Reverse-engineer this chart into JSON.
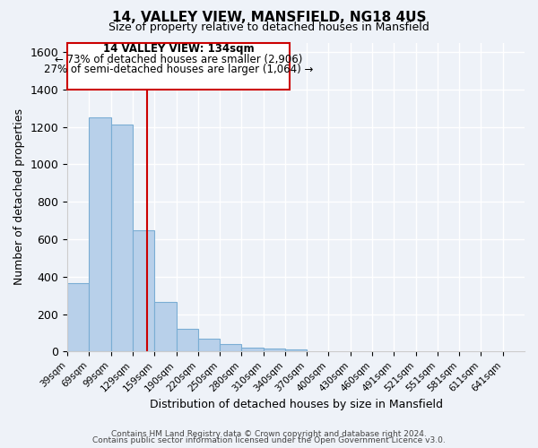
{
  "title": "14, VALLEY VIEW, MANSFIELD, NG18 4US",
  "subtitle": "Size of property relative to detached houses in Mansfield",
  "xlabel": "Distribution of detached houses by size in Mansfield",
  "ylabel": "Number of detached properties",
  "bar_labels": [
    "39sqm",
    "69sqm",
    "99sqm",
    "129sqm",
    "159sqm",
    "190sqm",
    "220sqm",
    "250sqm",
    "280sqm",
    "310sqm",
    "340sqm",
    "370sqm",
    "400sqm",
    "430sqm",
    "460sqm",
    "491sqm",
    "521sqm",
    "551sqm",
    "581sqm",
    "611sqm",
    "641sqm"
  ],
  "bar_values": [
    365,
    1250,
    1210,
    650,
    265,
    120,
    70,
    38,
    20,
    15,
    10,
    0,
    0,
    0,
    0,
    0,
    0,
    0,
    0,
    0,
    0
  ],
  "bar_color": "#b8d0ea",
  "bar_edgecolor": "#7aadd4",
  "property_line_label": "14 VALLEY VIEW: 134sqm",
  "annotation_line1": "← 73% of detached houses are smaller (2,906)",
  "annotation_line2": "27% of semi-detached houses are larger (1,064) →",
  "vline_color": "#cc0000",
  "box_edgecolor": "#cc0000",
  "ylim": [
    0,
    1650
  ],
  "yticks": [
    0,
    200,
    400,
    600,
    800,
    1000,
    1200,
    1400,
    1600
  ],
  "bin_width": 30,
  "bin_starts": [
    24,
    54,
    84,
    114,
    144,
    174,
    204,
    234,
    264,
    294,
    324,
    354,
    384,
    414,
    444,
    474,
    504,
    534,
    564,
    594,
    624
  ],
  "footer1": "Contains HM Land Registry data © Crown copyright and database right 2024.",
  "footer2": "Contains public sector information licensed under the Open Government Licence v3.0.",
  "background_color": "#eef2f8",
  "plot_background": "#eef2f8",
  "vline_x_sqm": 134
}
